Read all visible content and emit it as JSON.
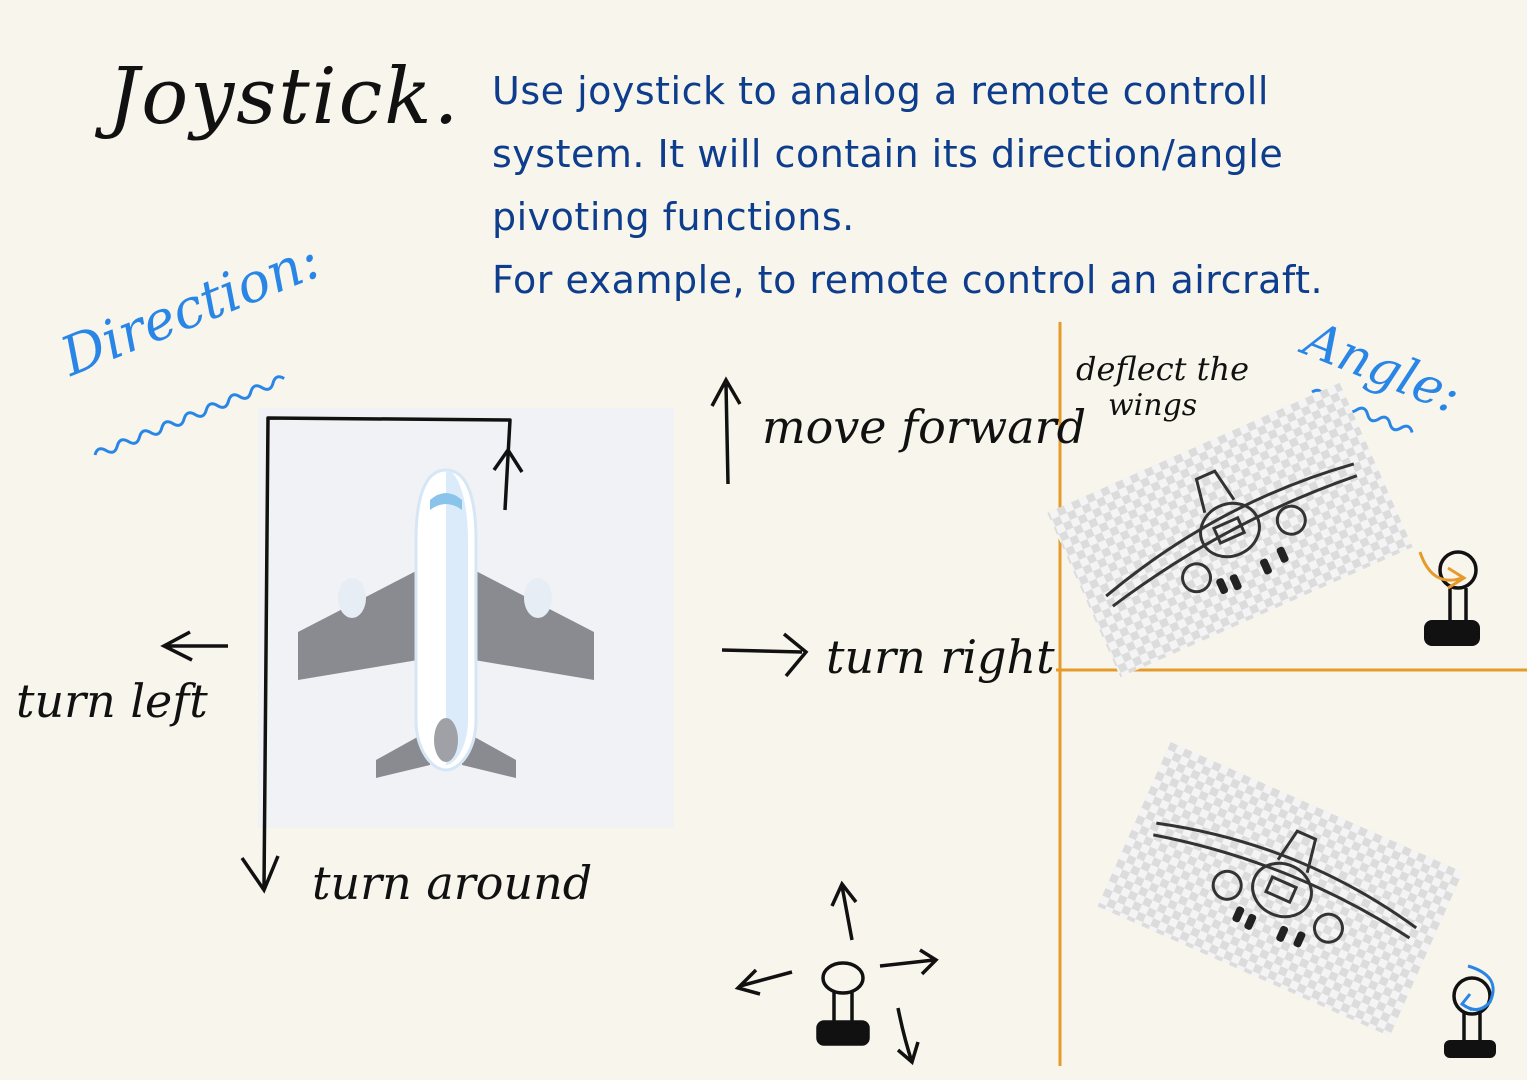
{
  "title": "Joystick.",
  "description": {
    "lines": [
      "Use joystick to analog a remote controll",
      "system. It will contain its direction/angle",
      "pivoting functions.",
      "For example, to remote control an aircraft."
    ]
  },
  "direction_section": {
    "heading": "Direction:",
    "labels": {
      "forward": "move forward",
      "left": "turn left",
      "right": "turn right",
      "around": "turn around"
    }
  },
  "angle_section": {
    "heading": "Angle:",
    "note_line1": "deflect the",
    "note_line2": "wings"
  },
  "colors": {
    "background": "#f8f6ec",
    "description_text": "#0d3d8c",
    "heading_blue": "#2a86e6",
    "divider_orange": "#e69a2a"
  }
}
